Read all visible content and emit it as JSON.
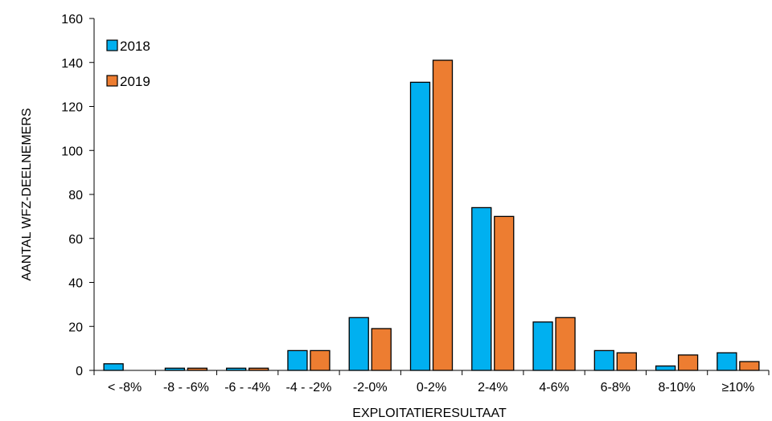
{
  "chart_data": {
    "type": "bar",
    "xlabel": "EXPLOITATIERESULTAAT",
    "ylabel": "AANTAL WFZ-DEELNEMERS",
    "ylim": [
      0,
      160
    ],
    "yticks": [
      "0",
      "20",
      "40",
      "60",
      "80",
      "100",
      "120",
      "140",
      "160"
    ],
    "categories": [
      "< -8%",
      "-8 - -6%",
      "-6 - -4%",
      "-4 - -2%",
      "-2-0%",
      "0-2%",
      "2-4%",
      "4-6%",
      "6-8%",
      "8-10%",
      "≥10%"
    ],
    "series": [
      {
        "name": "2018",
        "color": "#00B0F0",
        "values": [
          3,
          1,
          1,
          9,
          24,
          131,
          74,
          22,
          9,
          2,
          8
        ]
      },
      {
        "name": "2019",
        "color": "#ED7D31",
        "values": [
          0,
          1,
          1,
          9,
          19,
          141,
          70,
          24,
          8,
          7,
          4
        ]
      }
    ],
    "legend_position": "top-left",
    "grid": false
  }
}
